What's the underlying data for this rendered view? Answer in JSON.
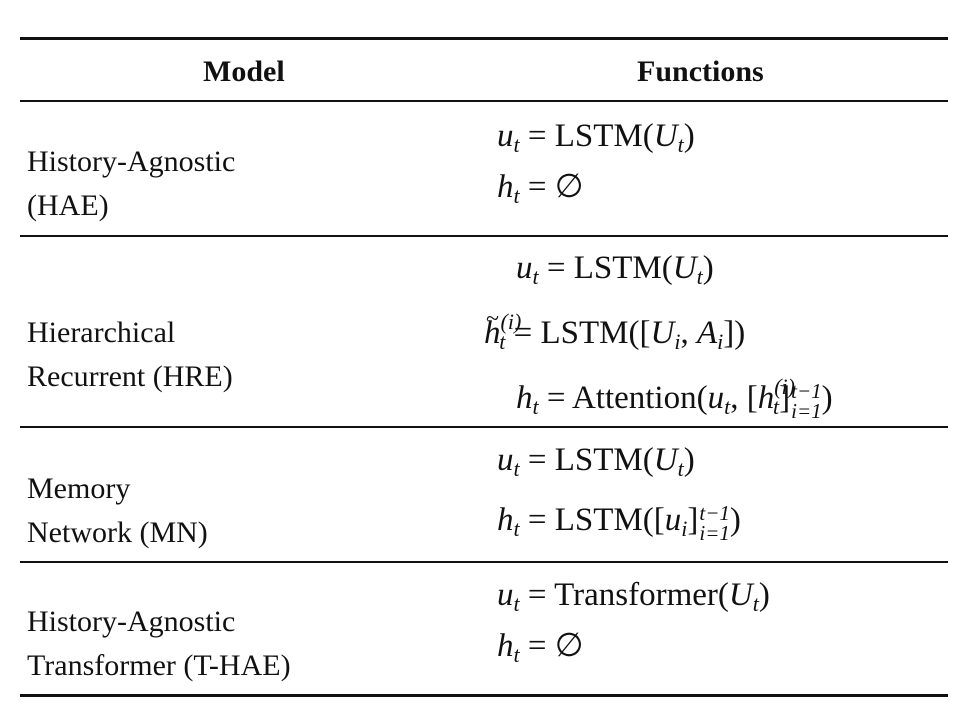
{
  "table": {
    "header": {
      "model": "Model",
      "functions": "Functions"
    },
    "rows": [
      {
        "model_lines": [
          "History-Agnostic",
          "(HAE)"
        ],
        "functions": [
          {
            "lhs": "u",
            "lhs_sub": "t",
            "eq": "=",
            "op": "LSTM",
            "open": "(",
            "arg": "U",
            "arg_sub": "t",
            "close": ")"
          },
          {
            "lhs": "h",
            "lhs_sub": "t",
            "eq": "=",
            "rhs": "∅"
          }
        ]
      },
      {
        "model_lines": [
          "Hierarchical",
          "Recurrent (HRE)"
        ],
        "functions": [
          {
            "lhs": "u",
            "lhs_sub": "t",
            "eq": "=",
            "op": "LSTM",
            "open": "(",
            "arg": "U",
            "arg_sub": "t",
            "close": ")"
          },
          {
            "lhs": "h",
            "lhs_sub": "t",
            "lhs_sup": "(i)",
            "eq": "=",
            "op": "LSTM",
            "open": "([",
            "arg1": "U",
            "arg1_sub": "i",
            "sep": ", ",
            "arg2": "A",
            "arg2_sub": "i",
            "close": "])"
          },
          {
            "lhs": "h",
            "lhs_sub": "t",
            "eq": "=",
            "op": "Attention",
            "open": "(",
            "arg1": "u",
            "arg1_sub": "t",
            "sep": ", [",
            "arg2": "h",
            "arg2_sub": "t",
            "arg2_sup": "(i)",
            "bracket": "]",
            "lim_top": "t−1",
            "lim_bot": "i=1",
            "close": ")"
          }
        ]
      },
      {
        "model_lines": [
          "Memory",
          "Network (MN)"
        ],
        "functions": [
          {
            "lhs": "u",
            "lhs_sub": "t",
            "eq": "=",
            "op": "LSTM",
            "open": "(",
            "arg": "U",
            "arg_sub": "t",
            "close": ")"
          },
          {
            "lhs": "h",
            "lhs_sub": "t",
            "eq": "=",
            "op": "LSTM",
            "open": "([",
            "arg": "u",
            "arg_sub": "i",
            "bracket": "]",
            "lim_top": "t−1",
            "lim_bot": "i=1",
            "close": ")"
          }
        ]
      },
      {
        "model_lines": [
          "History-Agnostic",
          "Transformer (T-HAE)"
        ],
        "functions": [
          {
            "lhs": "u",
            "lhs_sub": "t",
            "eq": "=",
            "op": "Transformer",
            "open": "(",
            "arg": "U",
            "arg_sub": "t",
            "close": ")"
          },
          {
            "lhs": "h",
            "lhs_sub": "t",
            "eq": "=",
            "rhs": "∅"
          }
        ]
      }
    ]
  }
}
